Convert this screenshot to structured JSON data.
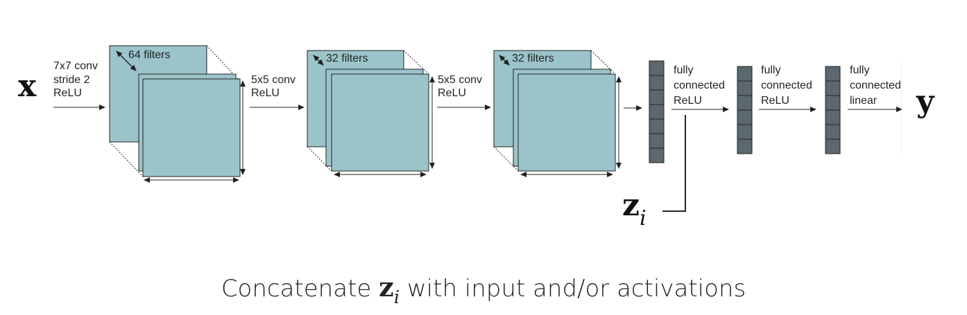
{
  "diagram": {
    "input_symbol": "x",
    "output_symbol": "y",
    "latent_symbol": "z",
    "latent_subscript": "i",
    "stages": [
      {
        "op_line1": "7x7 conv",
        "op_line2": "stride 2",
        "op_line3": "ReLU",
        "filters": "64 filters"
      },
      {
        "op_line1": "5x5 conv",
        "op_line2": "ReLU",
        "filters": "32 filters"
      },
      {
        "op_line1": "5x5 conv",
        "op_line2": "ReLU",
        "filters": "32 filters"
      }
    ],
    "fc_layers": [
      {
        "line1": "fully",
        "line2": "connected",
        "line3": "ReLU"
      },
      {
        "line1": "fully",
        "line2": "connected",
        "line3": "ReLU"
      },
      {
        "line1": "fully",
        "line2": "connected",
        "line3": "linear"
      }
    ],
    "colors": {
      "feature_map": "#9bc4ca",
      "fc_unit": "#5c6870",
      "stroke": "#222222"
    }
  },
  "caption": {
    "before": "Concatenate ",
    "z": "z",
    "subscript": "i",
    "after": " with input and/or activations"
  }
}
